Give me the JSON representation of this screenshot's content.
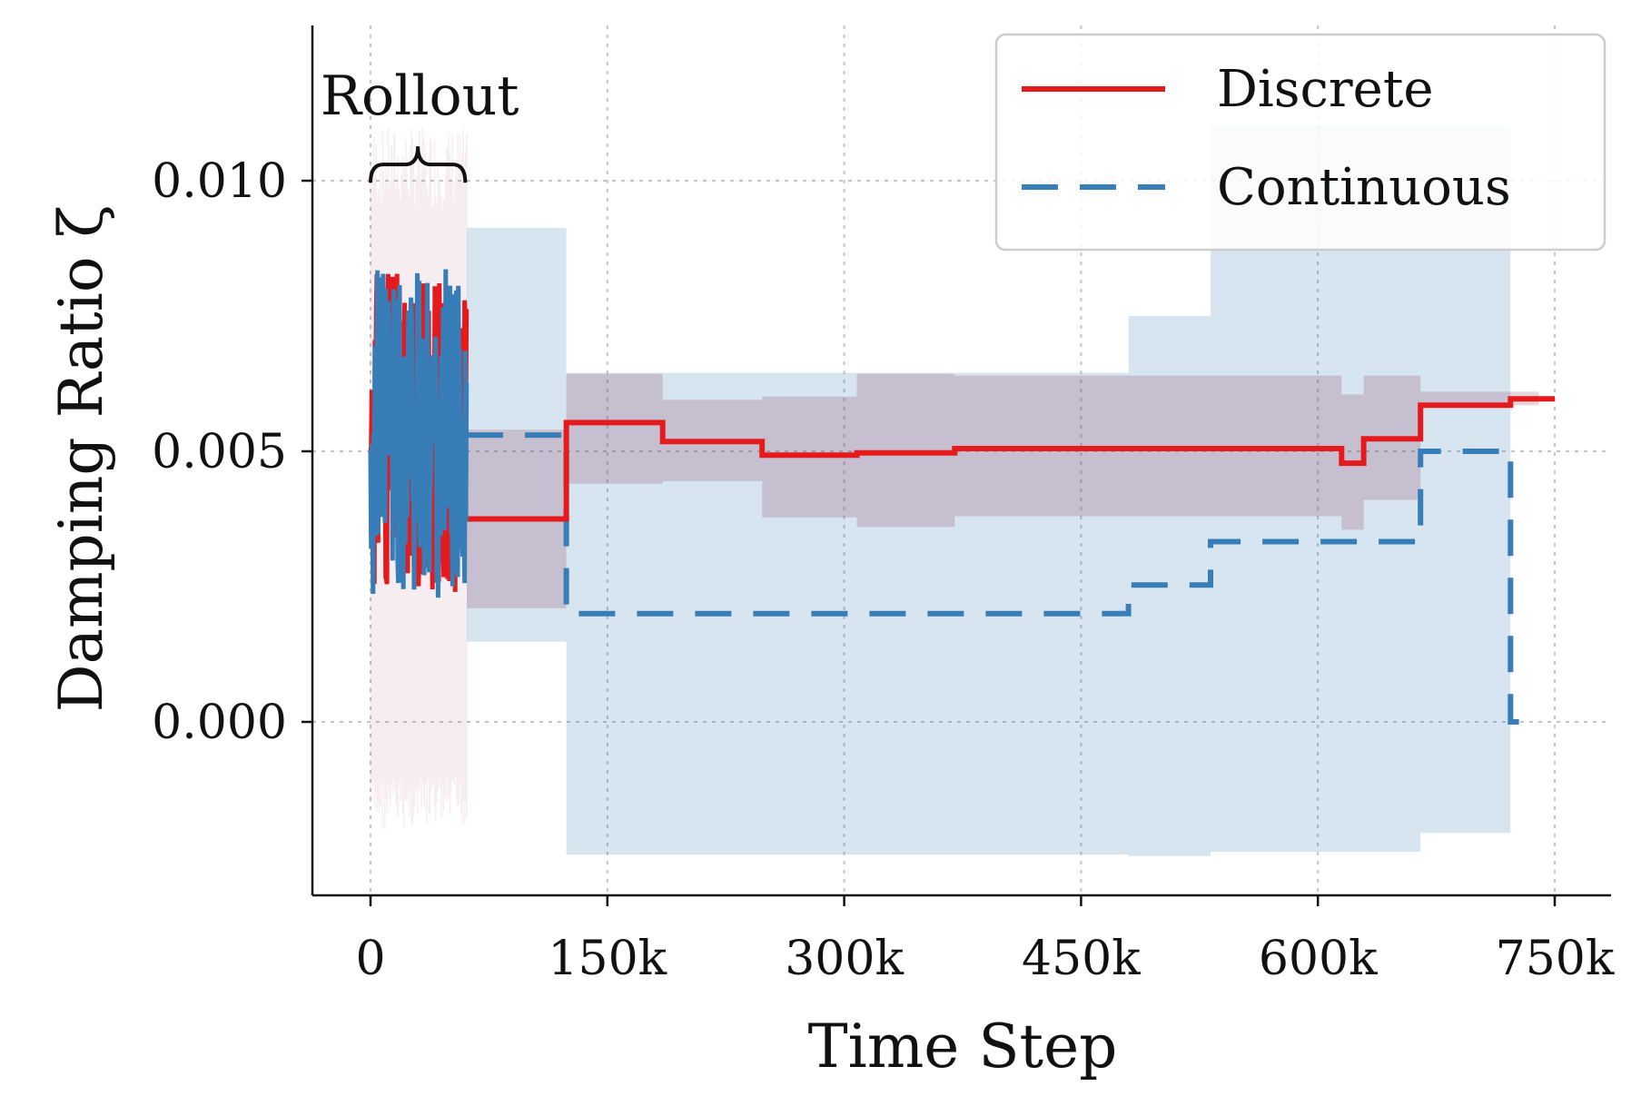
{
  "chart_data": {
    "type": "line",
    "title": "",
    "xlabel": "Time Step",
    "ylabel": "Damping Ratio ζ",
    "xlim": [
      -40000,
      785000
    ],
    "ylim": [
      -0.0032,
      0.0129
    ],
    "x_ticks": [
      {
        "value": 0,
        "label": "0"
      },
      {
        "value": 150000,
        "label": "150k"
      },
      {
        "value": 300000,
        "label": "300k"
      },
      {
        "value": 450000,
        "label": "450k"
      },
      {
        "value": 600000,
        "label": "600k"
      },
      {
        "value": 750000,
        "label": "750k"
      }
    ],
    "y_ticks": [
      {
        "value": 0.0,
        "label": "0.000"
      },
      {
        "value": 0.005,
        "label": "0.005"
      },
      {
        "value": 0.01,
        "label": "0.010"
      }
    ],
    "grid": true,
    "legend_position": "top-right",
    "annotation": {
      "text": "Rollout",
      "x_start": 0,
      "x_end": 60000,
      "brace_y": 0.0103
    },
    "colors": {
      "discrete": "#e41a1c",
      "continuous": "#377eb8",
      "discrete_band": "#8b3a5a",
      "continuous_band": "#377eb8"
    },
    "series": [
      {
        "name": "Discrete",
        "style": "solid",
        "rollout_x_range": [
          0,
          61000
        ],
        "rollout_range": [
          0.0024,
          0.0084
        ],
        "points": [
          [
            61000,
            0.00375
          ],
          [
            124000,
            0.00375
          ],
          [
            124000,
            0.00553
          ],
          [
            185000,
            0.00553
          ],
          [
            185000,
            0.00518
          ],
          [
            248000,
            0.00518
          ],
          [
            248000,
            0.00493
          ],
          [
            308000,
            0.00493
          ],
          [
            308000,
            0.00497
          ],
          [
            370000,
            0.00497
          ],
          [
            370000,
            0.00505
          ],
          [
            615000,
            0.00505
          ],
          [
            615000,
            0.00478
          ],
          [
            629000,
            0.00478
          ],
          [
            629000,
            0.00523
          ],
          [
            665000,
            0.00523
          ],
          [
            665000,
            0.00585
          ],
          [
            722000,
            0.00585
          ],
          [
            722000,
            0.00597
          ],
          [
            750000,
            0.00597
          ]
        ],
        "band": [
          [
            61000,
            0.0021,
            0.0054
          ],
          [
            124000,
            0.0021,
            0.0054
          ],
          [
            124000,
            0.0044,
            0.00643
          ],
          [
            185000,
            0.0044,
            0.00643
          ],
          [
            185000,
            0.00445,
            0.00595
          ],
          [
            248000,
            0.00445,
            0.00595
          ],
          [
            248000,
            0.00378,
            0.00601
          ],
          [
            308000,
            0.00378,
            0.00601
          ],
          [
            308000,
            0.0036,
            0.00643
          ],
          [
            370000,
            0.0036,
            0.00643
          ],
          [
            370000,
            0.0038,
            0.0064
          ],
          [
            615000,
            0.0038,
            0.0064
          ],
          [
            615000,
            0.00355,
            0.00605
          ],
          [
            629000,
            0.00355,
            0.00605
          ],
          [
            629000,
            0.0041,
            0.0064
          ],
          [
            665000,
            0.0041,
            0.0064
          ],
          [
            665000,
            0.00585,
            0.0061
          ],
          [
            722000,
            0.00585,
            0.0061
          ],
          [
            722000,
            0.00585,
            0.0061
          ],
          [
            740000,
            0.00585,
            0.0061
          ]
        ]
      },
      {
        "name": "Continuous",
        "style": "dashed",
        "rollout_x_range": [
          0,
          61000
        ],
        "rollout_range": [
          0.0022,
          0.0085
        ],
        "points": [
          [
            61000,
            0.0053
          ],
          [
            124000,
            0.0053
          ],
          [
            124000,
            0.002
          ],
          [
            480000,
            0.002
          ],
          [
            480000,
            0.00253
          ],
          [
            532000,
            0.00253
          ],
          [
            532000,
            0.00333
          ],
          [
            665000,
            0.00333
          ],
          [
            665000,
            0.005
          ],
          [
            722000,
            0.005
          ],
          [
            722000,
            0.0
          ],
          [
            730000,
            0.0
          ]
        ],
        "band": [
          [
            61000,
            0.00148,
            0.00913
          ],
          [
            124000,
            0.00148,
            0.00913
          ],
          [
            124000,
            -0.00245,
            0.00645
          ],
          [
            480000,
            -0.00245,
            0.00645
          ],
          [
            480000,
            -0.00248,
            0.0075
          ],
          [
            532000,
            -0.00248,
            0.0075
          ],
          [
            532000,
            -0.0024,
            0.011
          ],
          [
            665000,
            -0.0024,
            0.011
          ],
          [
            665000,
            -0.00205,
            0.011
          ],
          [
            722000,
            -0.00205,
            0.011
          ]
        ]
      }
    ]
  }
}
